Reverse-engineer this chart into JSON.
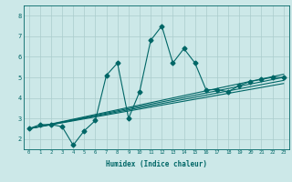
{
  "xlabel": "Humidex (Indice chaleur)",
  "ylabel": "",
  "background_color": "#cce8e8",
  "line_color": "#006666",
  "grid_color": "#aacccc",
  "xlim": [
    -0.5,
    23.5
  ],
  "ylim": [
    1.5,
    8.5
  ],
  "xticks": [
    0,
    1,
    2,
    3,
    4,
    5,
    6,
    7,
    8,
    9,
    10,
    11,
    12,
    13,
    14,
    15,
    16,
    17,
    18,
    19,
    20,
    21,
    22,
    23
  ],
  "yticks": [
    2,
    3,
    4,
    5,
    6,
    7,
    8
  ],
  "lines": [
    {
      "x": [
        0,
        1,
        2,
        3,
        4,
        5,
        6,
        7,
        8,
        9,
        10,
        11,
        12,
        13,
        14,
        15,
        16,
        17,
        18,
        19,
        20,
        21,
        22,
        23
      ],
      "y": [
        2.5,
        2.7,
        2.7,
        2.6,
        1.7,
        2.4,
        2.9,
        5.1,
        5.7,
        3.0,
        4.3,
        6.8,
        7.5,
        5.7,
        6.4,
        5.7,
        4.4,
        4.4,
        4.3,
        4.6,
        4.8,
        4.9,
        5.0,
        5.0
      ],
      "marker": "D",
      "markersize": 2.5
    },
    {
      "x": [
        0,
        23
      ],
      "y": [
        2.5,
        4.85
      ],
      "marker": null,
      "markersize": 0
    },
    {
      "x": [
        0,
        23
      ],
      "y": [
        2.5,
        5.0
      ],
      "marker": null,
      "markersize": 0
    },
    {
      "x": [
        0,
        23
      ],
      "y": [
        2.5,
        4.7
      ],
      "marker": null,
      "markersize": 0
    },
    {
      "x": [
        0,
        23
      ],
      "y": [
        2.5,
        5.15
      ],
      "marker": null,
      "markersize": 0
    }
  ]
}
